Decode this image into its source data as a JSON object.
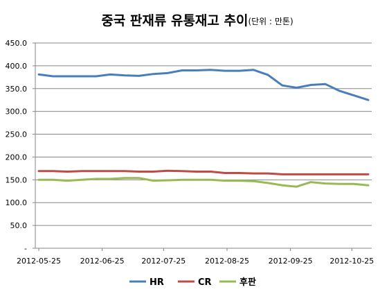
{
  "chart_data": {
    "type": "line",
    "title": "중국 판재류 유통재고 추이",
    "subtitle": "(단위 : 만톤)",
    "xlabel": "",
    "ylabel": "",
    "ylim": [
      0,
      450
    ],
    "y_ticks": [
      "-",
      "50.0",
      "100.0",
      "150.0",
      "200.0",
      "250.0",
      "300.0",
      "350.0",
      "400.0",
      "450.0"
    ],
    "x_tick_labels": [
      "2012-05-25",
      "2012-06-25",
      "2012-07-25",
      "2012-08-25",
      "2012-09-25",
      "2012-10-25"
    ],
    "x": [
      "2012-05-25",
      "2012-05-31",
      "2012-06-08",
      "2012-06-15",
      "2012-06-22",
      "2012-06-29",
      "2012-07-06",
      "2012-07-13",
      "2012-07-20",
      "2012-07-27",
      "2012-08-03",
      "2012-08-10",
      "2012-08-17",
      "2012-08-24",
      "2012-08-31",
      "2012-09-07",
      "2012-09-14",
      "2012-09-21",
      "2012-09-28",
      "2012-10-05",
      "2012-10-12",
      "2012-10-19",
      "2012-10-26",
      "2012-11-02"
    ],
    "grid": true,
    "legend_position": "bottom",
    "series": [
      {
        "name": "HR",
        "color": "#4A7EBB",
        "values": [
          381,
          377,
          377,
          377,
          377,
          381,
          379,
          378,
          382,
          384,
          390,
          390,
          391,
          389,
          389,
          391,
          380,
          357,
          352,
          358,
          360,
          345,
          335,
          325
        ]
      },
      {
        "name": "CR",
        "color": "#BE4B48",
        "values": [
          169,
          169,
          168,
          169,
          169,
          169,
          169,
          168,
          168,
          170,
          169,
          168,
          168,
          165,
          165,
          164,
          164,
          162,
          162,
          162,
          162,
          162,
          162,
          162
        ]
      },
      {
        "name": "후판",
        "color": "#98B954",
        "values": [
          150,
          150,
          148,
          150,
          152,
          152,
          154,
          154,
          148,
          149,
          150,
          150,
          150,
          148,
          148,
          147,
          143,
          138,
          135,
          145,
          142,
          141,
          141,
          138
        ]
      }
    ]
  }
}
